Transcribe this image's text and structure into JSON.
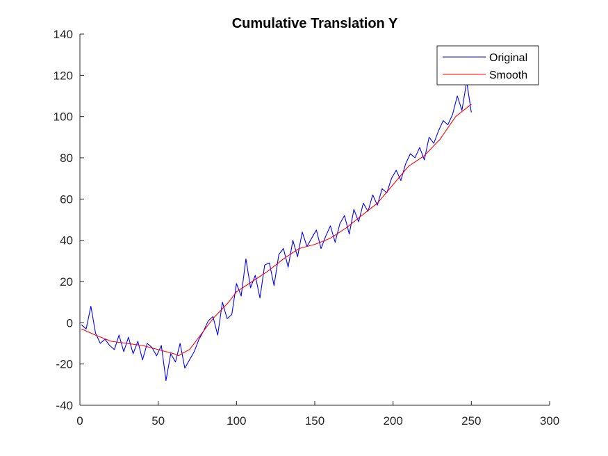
{
  "chart_data": {
    "type": "line",
    "title": "Cumulative Translation Y",
    "xlabel": "",
    "ylabel": "",
    "xlim": [
      0,
      300
    ],
    "ylim": [
      -40,
      140
    ],
    "xticks": [
      0,
      50,
      100,
      150,
      200,
      250,
      300
    ],
    "yticks": [
      -40,
      -20,
      0,
      20,
      40,
      60,
      80,
      100,
      120,
      140
    ],
    "xtick_labels": [
      "0",
      "50",
      "100",
      "150",
      "200",
      "250",
      "300"
    ],
    "ytick_labels": [
      "-40",
      "-20",
      "0",
      "20",
      "40",
      "60",
      "80",
      "100",
      "120",
      "140"
    ],
    "grid": false,
    "legend_position": "top-right",
    "series": [
      {
        "name": "Original",
        "color": "#0000ff",
        "x": [
          1,
          4,
          7,
          10,
          13,
          16,
          19,
          22,
          25,
          28,
          31,
          34,
          37,
          40,
          43,
          46,
          49,
          52,
          55,
          58,
          61,
          64,
          67,
          70,
          73,
          76,
          79,
          82,
          85,
          88,
          91,
          94,
          97,
          100,
          103,
          106,
          109,
          112,
          115,
          118,
          121,
          124,
          127,
          130,
          133,
          136,
          139,
          142,
          145,
          148,
          151,
          154,
          157,
          160,
          163,
          166,
          169,
          172,
          175,
          178,
          181,
          184,
          187,
          190,
          193,
          196,
          199,
          202,
          205,
          208,
          211,
          214,
          217,
          220,
          223,
          226,
          229,
          232,
          235,
          238,
          241,
          244,
          247,
          250
        ],
        "values": [
          -1,
          -3,
          8,
          -5,
          -10,
          -8,
          -11,
          -13,
          -6,
          -14,
          -7,
          -15,
          -9,
          -18,
          -10,
          -12,
          -16,
          -11,
          -28,
          -15,
          -19,
          -10,
          -22,
          -18,
          -14,
          -8,
          -4,
          1,
          3,
          -6,
          10,
          2,
          4,
          19,
          13,
          31,
          17,
          23,
          12,
          28,
          29,
          18,
          33,
          36,
          27,
          40,
          32,
          44,
          37,
          41,
          45,
          36,
          42,
          47,
          39,
          48,
          52,
          43,
          55,
          49,
          58,
          54,
          62,
          57,
          65,
          63,
          70,
          74,
          69,
          77,
          82,
          80,
          85,
          79,
          90,
          87,
          93,
          98,
          96,
          101,
          110,
          103,
          117,
          102
        ]
      },
      {
        "name": "Smooth",
        "color": "#ff0000",
        "x": [
          1,
          10,
          20,
          30,
          40,
          50,
          55,
          60,
          63,
          65,
          70,
          75,
          80,
          85,
          90,
          95,
          100,
          110,
          120,
          130,
          140,
          150,
          160,
          170,
          180,
          190,
          200,
          210,
          220,
          230,
          240,
          250
        ],
        "values": [
          -3,
          -6,
          -9,
          -10,
          -11,
          -13,
          -14,
          -15,
          -16,
          -15,
          -13,
          -8,
          -3,
          2,
          6,
          10,
          15,
          20,
          25,
          31,
          36,
          38,
          41,
          46,
          52,
          58,
          67,
          76,
          81,
          89,
          100,
          106
        ]
      }
    ]
  }
}
